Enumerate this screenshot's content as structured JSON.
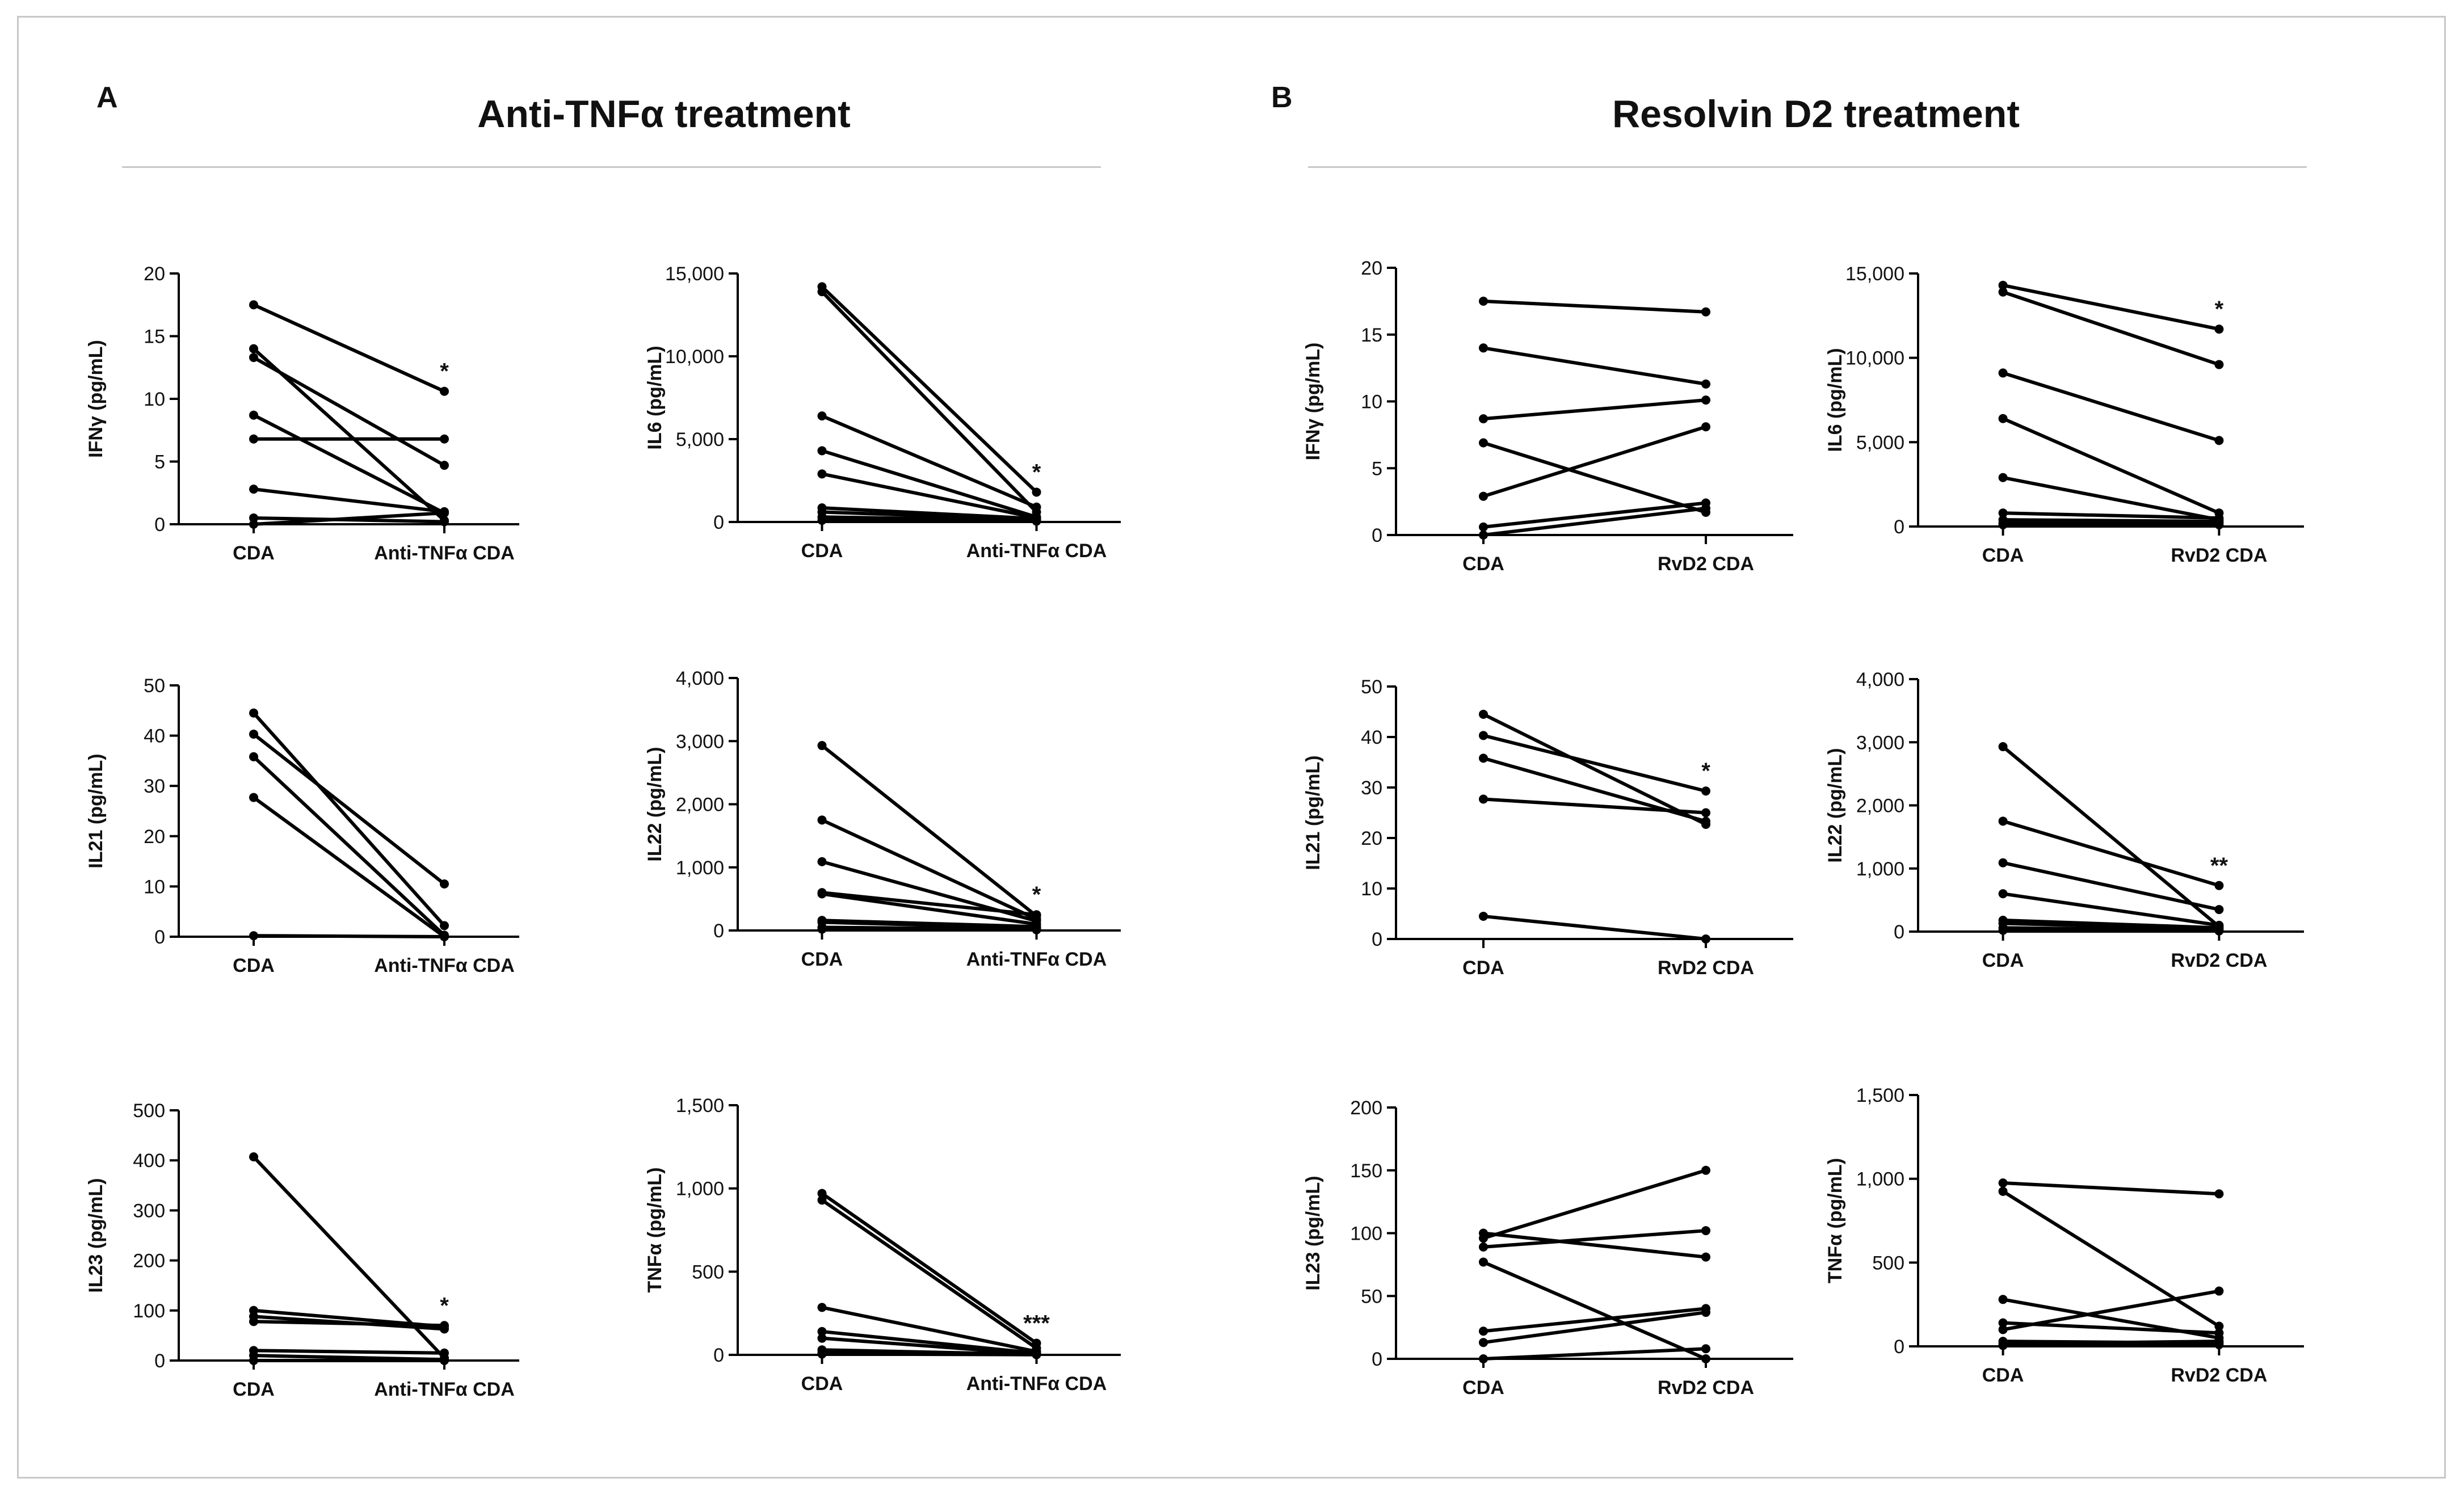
{
  "panels": [
    {
      "letter": "A",
      "title": "Anti-TNFα treatment"
    },
    {
      "letter": "B",
      "title": "Resolvin D2 treatment"
    }
  ],
  "chart_data": [
    {
      "type": "line",
      "id": "A-IFNg",
      "ylabel": "IFNγ (pg/mL)",
      "categories": [
        "CDA",
        "Anti-TNFα CDA"
      ],
      "ylim": [
        0,
        20
      ],
      "yticks": [
        0,
        5,
        10,
        15,
        20
      ],
      "yticklabels": [
        "0",
        "5",
        "10",
        "15",
        "20"
      ],
      "significance": "*",
      "series": [
        [
          17.5,
          10.6
        ],
        [
          14.0,
          0.3
        ],
        [
          13.3,
          4.7
        ],
        [
          8.7,
          0.9
        ],
        [
          6.8,
          6.8
        ],
        [
          2.8,
          1.0
        ],
        [
          0.5,
          0.2
        ],
        [
          0.0,
          0.9
        ]
      ]
    },
    {
      "type": "line",
      "id": "A-IL6",
      "ylabel": "IL6 (pg/mL)",
      "categories": [
        "CDA",
        "Anti-TNFα CDA"
      ],
      "ylim": [
        0,
        15000
      ],
      "yticks": [
        0,
        5000,
        10000,
        15000
      ],
      "yticklabels": [
        "0",
        "5,000",
        "10,000",
        "15,000"
      ],
      "significance": "*",
      "series": [
        [
          14200,
          1800
        ],
        [
          13900,
          600
        ],
        [
          6400,
          900
        ],
        [
          4300,
          300
        ],
        [
          2900,
          250
        ],
        [
          850,
          200
        ],
        [
          600,
          150
        ],
        [
          300,
          100
        ],
        [
          100,
          50
        ]
      ]
    },
    {
      "type": "line",
      "id": "A-IL21",
      "ylabel": "IL21 (pg/mL)",
      "categories": [
        "CDA",
        "Anti-TNFα CDA"
      ],
      "ylim": [
        0,
        50
      ],
      "yticks": [
        0,
        10,
        20,
        30,
        40,
        50
      ],
      "yticklabels": [
        "0",
        "10",
        "20",
        "30",
        "40",
        "50"
      ],
      "significance": "",
      "series": [
        [
          44.5,
          2.2
        ],
        [
          40.3,
          10.5
        ],
        [
          35.8,
          0.3
        ],
        [
          27.7,
          0.0
        ],
        [
          0.2,
          0.0
        ]
      ]
    },
    {
      "type": "line",
      "id": "A-IL22",
      "ylabel": "IL22 (pg/mL)",
      "categories": [
        "CDA",
        "Anti-TNFα CDA"
      ],
      "ylim": [
        0,
        4000
      ],
      "yticks": [
        0,
        1000,
        2000,
        3000,
        4000
      ],
      "yticklabels": [
        "0",
        "1,000",
        "2,000",
        "3,000",
        "4,000"
      ],
      "significance": "*",
      "series": [
        [
          2930,
          230
        ],
        [
          1750,
          180
        ],
        [
          1090,
          150
        ],
        [
          600,
          250
        ],
        [
          580,
          100
        ],
        [
          160,
          60
        ],
        [
          130,
          40
        ],
        [
          50,
          20
        ],
        [
          20,
          10
        ]
      ]
    },
    {
      "type": "line",
      "id": "A-IL23",
      "ylabel": "IL23 (pg/mL)",
      "categories": [
        "CDA",
        "Anti-TNFα CDA"
      ],
      "ylim": [
        0,
        500
      ],
      "yticks": [
        0,
        100,
        200,
        300,
        400,
        500
      ],
      "yticklabels": [
        "0",
        "100",
        "200",
        "300",
        "400",
        "500"
      ],
      "significance": "*",
      "series": [
        [
          407,
          5
        ],
        [
          100,
          68
        ],
        [
          88,
          63
        ],
        [
          78,
          70
        ],
        [
          20,
          15
        ],
        [
          10,
          2
        ],
        [
          0,
          0
        ]
      ]
    },
    {
      "type": "line",
      "id": "A-TNFa",
      "ylabel": "TNFα (pg/mL)",
      "categories": [
        "CDA",
        "Anti-TNFα CDA"
      ],
      "ylim": [
        0,
        1500
      ],
      "yticks": [
        0,
        500,
        1000,
        1500
      ],
      "yticklabels": [
        "0",
        "500",
        "1,000",
        "1,500"
      ],
      "significance": "***",
      "series": [
        [
          970,
          70
        ],
        [
          930,
          40
        ],
        [
          285,
          20
        ],
        [
          140,
          10
        ],
        [
          100,
          5
        ],
        [
          30,
          3
        ],
        [
          15,
          2
        ],
        [
          5,
          1
        ]
      ]
    },
    {
      "type": "line",
      "id": "B-IFNg",
      "ylabel": "IFNγ (pg/mL)",
      "categories": [
        "CDA",
        "RvD2 CDA"
      ],
      "ylim": [
        0,
        20
      ],
      "yticks": [
        0,
        5,
        10,
        15,
        20
      ],
      "yticklabels": [
        "0",
        "5",
        "10",
        "15",
        "20"
      ],
      "significance": "",
      "series": [
        [
          17.5,
          16.7
        ],
        [
          14.0,
          11.3
        ],
        [
          8.7,
          10.1
        ],
        [
          6.9,
          1.7
        ],
        [
          2.9,
          8.1
        ],
        [
          0.6,
          2.4
        ],
        [
          0.0,
          2.0
        ]
      ]
    },
    {
      "type": "line",
      "id": "B-IL6",
      "ylabel": "IL6 (pg/mL)",
      "categories": [
        "CDA",
        "RvD2 CDA"
      ],
      "ylim": [
        0,
        15000
      ],
      "yticks": [
        0,
        5000,
        10000,
        15000
      ],
      "yticklabels": [
        "0",
        "5,000",
        "10,000",
        "15,000"
      ],
      "significance": "*",
      "series": [
        [
          14300,
          11700
        ],
        [
          13900,
          9600
        ],
        [
          9100,
          5100
        ],
        [
          6400,
          800
        ],
        [
          2900,
          400
        ],
        [
          800,
          500
        ],
        [
          400,
          300
        ],
        [
          200,
          200
        ],
        [
          100,
          100
        ]
      ]
    },
    {
      "type": "line",
      "id": "B-IL21",
      "ylabel": "IL21 (pg/mL)",
      "categories": [
        "CDA",
        "RvD2 CDA"
      ],
      "ylim": [
        0,
        50
      ],
      "yticks": [
        0,
        10,
        20,
        30,
        40,
        50
      ],
      "yticklabels": [
        "0",
        "10",
        "20",
        "30",
        "40",
        "50"
      ],
      "significance": "*",
      "series": [
        [
          44.5,
          22.7
        ],
        [
          40.3,
          29.3
        ],
        [
          35.8,
          23.3
        ],
        [
          27.7,
          25.0
        ],
        [
          4.5,
          0.0
        ]
      ]
    },
    {
      "type": "line",
      "id": "B-IL22",
      "ylabel": "IL22 (pg/mL)",
      "categories": [
        "CDA",
        "RvD2 CDA"
      ],
      "ylim": [
        0,
        4000
      ],
      "yticks": [
        0,
        1000,
        2000,
        3000,
        4000
      ],
      "yticklabels": [
        "0",
        "1,000",
        "2,000",
        "3,000",
        "4,000"
      ],
      "significance": "**",
      "series": [
        [
          2930,
          80
        ],
        [
          1750,
          730
        ],
        [
          1090,
          350
        ],
        [
          600,
          100
        ],
        [
          180,
          60
        ],
        [
          130,
          40
        ],
        [
          60,
          20
        ],
        [
          20,
          10
        ]
      ]
    },
    {
      "type": "line",
      "id": "B-IL23",
      "ylabel": "IL23 (pg/mL)",
      "categories": [
        "CDA",
        "RvD2 CDA"
      ],
      "ylim": [
        0,
        200
      ],
      "yticks": [
        0,
        50,
        100,
        150,
        200
      ],
      "yticklabels": [
        "0",
        "50",
        "100",
        "150",
        "200"
      ],
      "significance": "",
      "series": [
        [
          100,
          81
        ],
        [
          96,
          150
        ],
        [
          89,
          102
        ],
        [
          77,
          0
        ],
        [
          22,
          40
        ],
        [
          13,
          37
        ],
        [
          0,
          8
        ]
      ]
    },
    {
      "type": "line",
      "id": "B-TNFa",
      "ylabel": "TNFα (pg/mL)",
      "categories": [
        "CDA",
        "RvD2 CDA"
      ],
      "ylim": [
        0,
        1500
      ],
      "yticks": [
        0,
        500,
        1000,
        1500
      ],
      "yticklabels": [
        "0",
        "500",
        "1,000",
        "1,500"
      ],
      "significance": "",
      "series": [
        [
          975,
          910
        ],
        [
          925,
          120
        ],
        [
          280,
          50
        ],
        [
          140,
          80
        ],
        [
          100,
          330
        ],
        [
          30,
          20
        ],
        [
          15,
          30
        ],
        [
          5,
          10
        ]
      ]
    }
  ]
}
